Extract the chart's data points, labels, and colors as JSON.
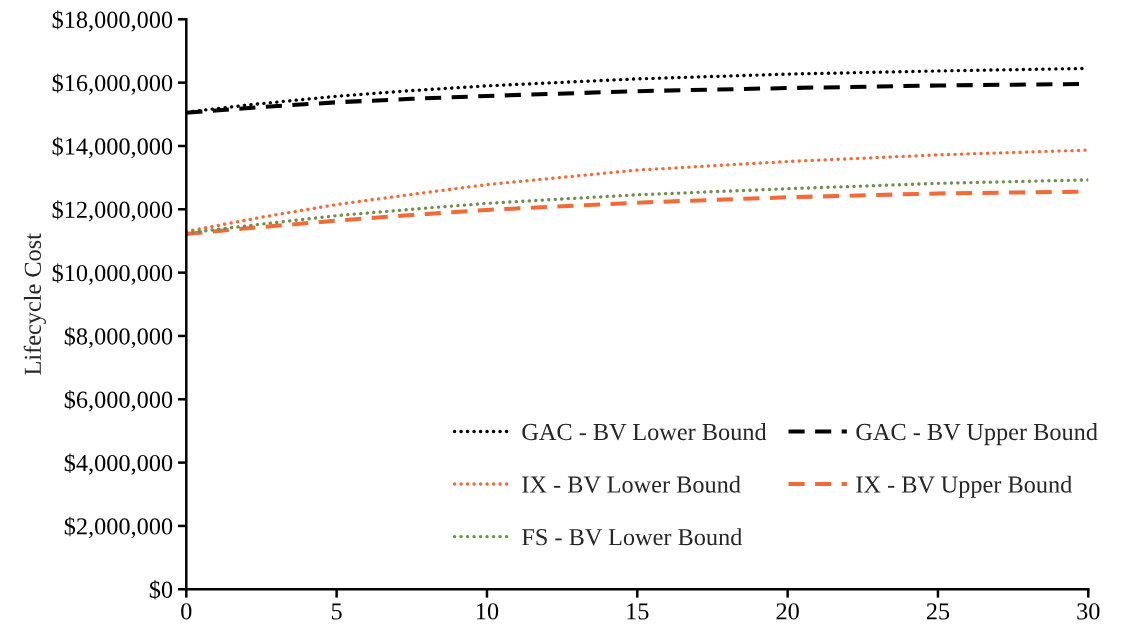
{
  "chart_data": {
    "type": "line",
    "ylabel": "Lifecycle Cost",
    "x": [
      0,
      2.5,
      5,
      7.5,
      10,
      15,
      20,
      25,
      30
    ],
    "xlim": [
      0,
      30
    ],
    "xticks": [
      0,
      5,
      10,
      15,
      20,
      25,
      30
    ],
    "ylim": [
      0,
      18000000
    ],
    "yticks": [
      {
        "value": 0,
        "label": "$0"
      },
      {
        "value": 2000000,
        "label": "$2,000,000"
      },
      {
        "value": 4000000,
        "label": "$4,000,000"
      },
      {
        "value": 6000000,
        "label": "$6,000,000"
      },
      {
        "value": 8000000,
        "label": "$8,000,000"
      },
      {
        "value": 10000000,
        "label": "$10,000,000"
      },
      {
        "value": 12000000,
        "label": "$12,000,000"
      },
      {
        "value": 14000000,
        "label": "$14,000,000"
      },
      {
        "value": 16000000,
        "label": "$16,000,000"
      },
      {
        "value": 18000000,
        "label": "$18,000,000"
      }
    ],
    "legend": "bottom right",
    "series": [
      {
        "name": "GAC - BV Lower Bound",
        "color": "#000000",
        "line_style": "dotted",
        "values": [
          15070000,
          15340000,
          15570000,
          15750000,
          15900000,
          16120000,
          16270000,
          16370000,
          16450000
        ]
      },
      {
        "name": "GAC - BV Upper Bound",
        "color": "#000000",
        "line_style": "dashed",
        "values": [
          15050000,
          15230000,
          15380000,
          15490000,
          15580000,
          15730000,
          15830000,
          15910000,
          15960000
        ]
      },
      {
        "name": "IX - BV Lower Bound",
        "color": "#f26a36",
        "line_style": "dotted",
        "values": [
          11300000,
          11750000,
          12150000,
          12470000,
          12780000,
          13240000,
          13510000,
          13720000,
          13870000
        ]
      },
      {
        "name": "IX - BV Upper Bound",
        "color": "#f26a36",
        "line_style": "dashed",
        "values": [
          11220000,
          11440000,
          11640000,
          11820000,
          11980000,
          12210000,
          12380000,
          12500000,
          12560000
        ]
      },
      {
        "name": "FS - BV Lower Bound",
        "color": "#6f8f4c",
        "line_style": "dotted",
        "values": [
          11250000,
          11530000,
          11800000,
          12000000,
          12190000,
          12460000,
          12650000,
          12820000,
          12930000
        ]
      }
    ]
  }
}
